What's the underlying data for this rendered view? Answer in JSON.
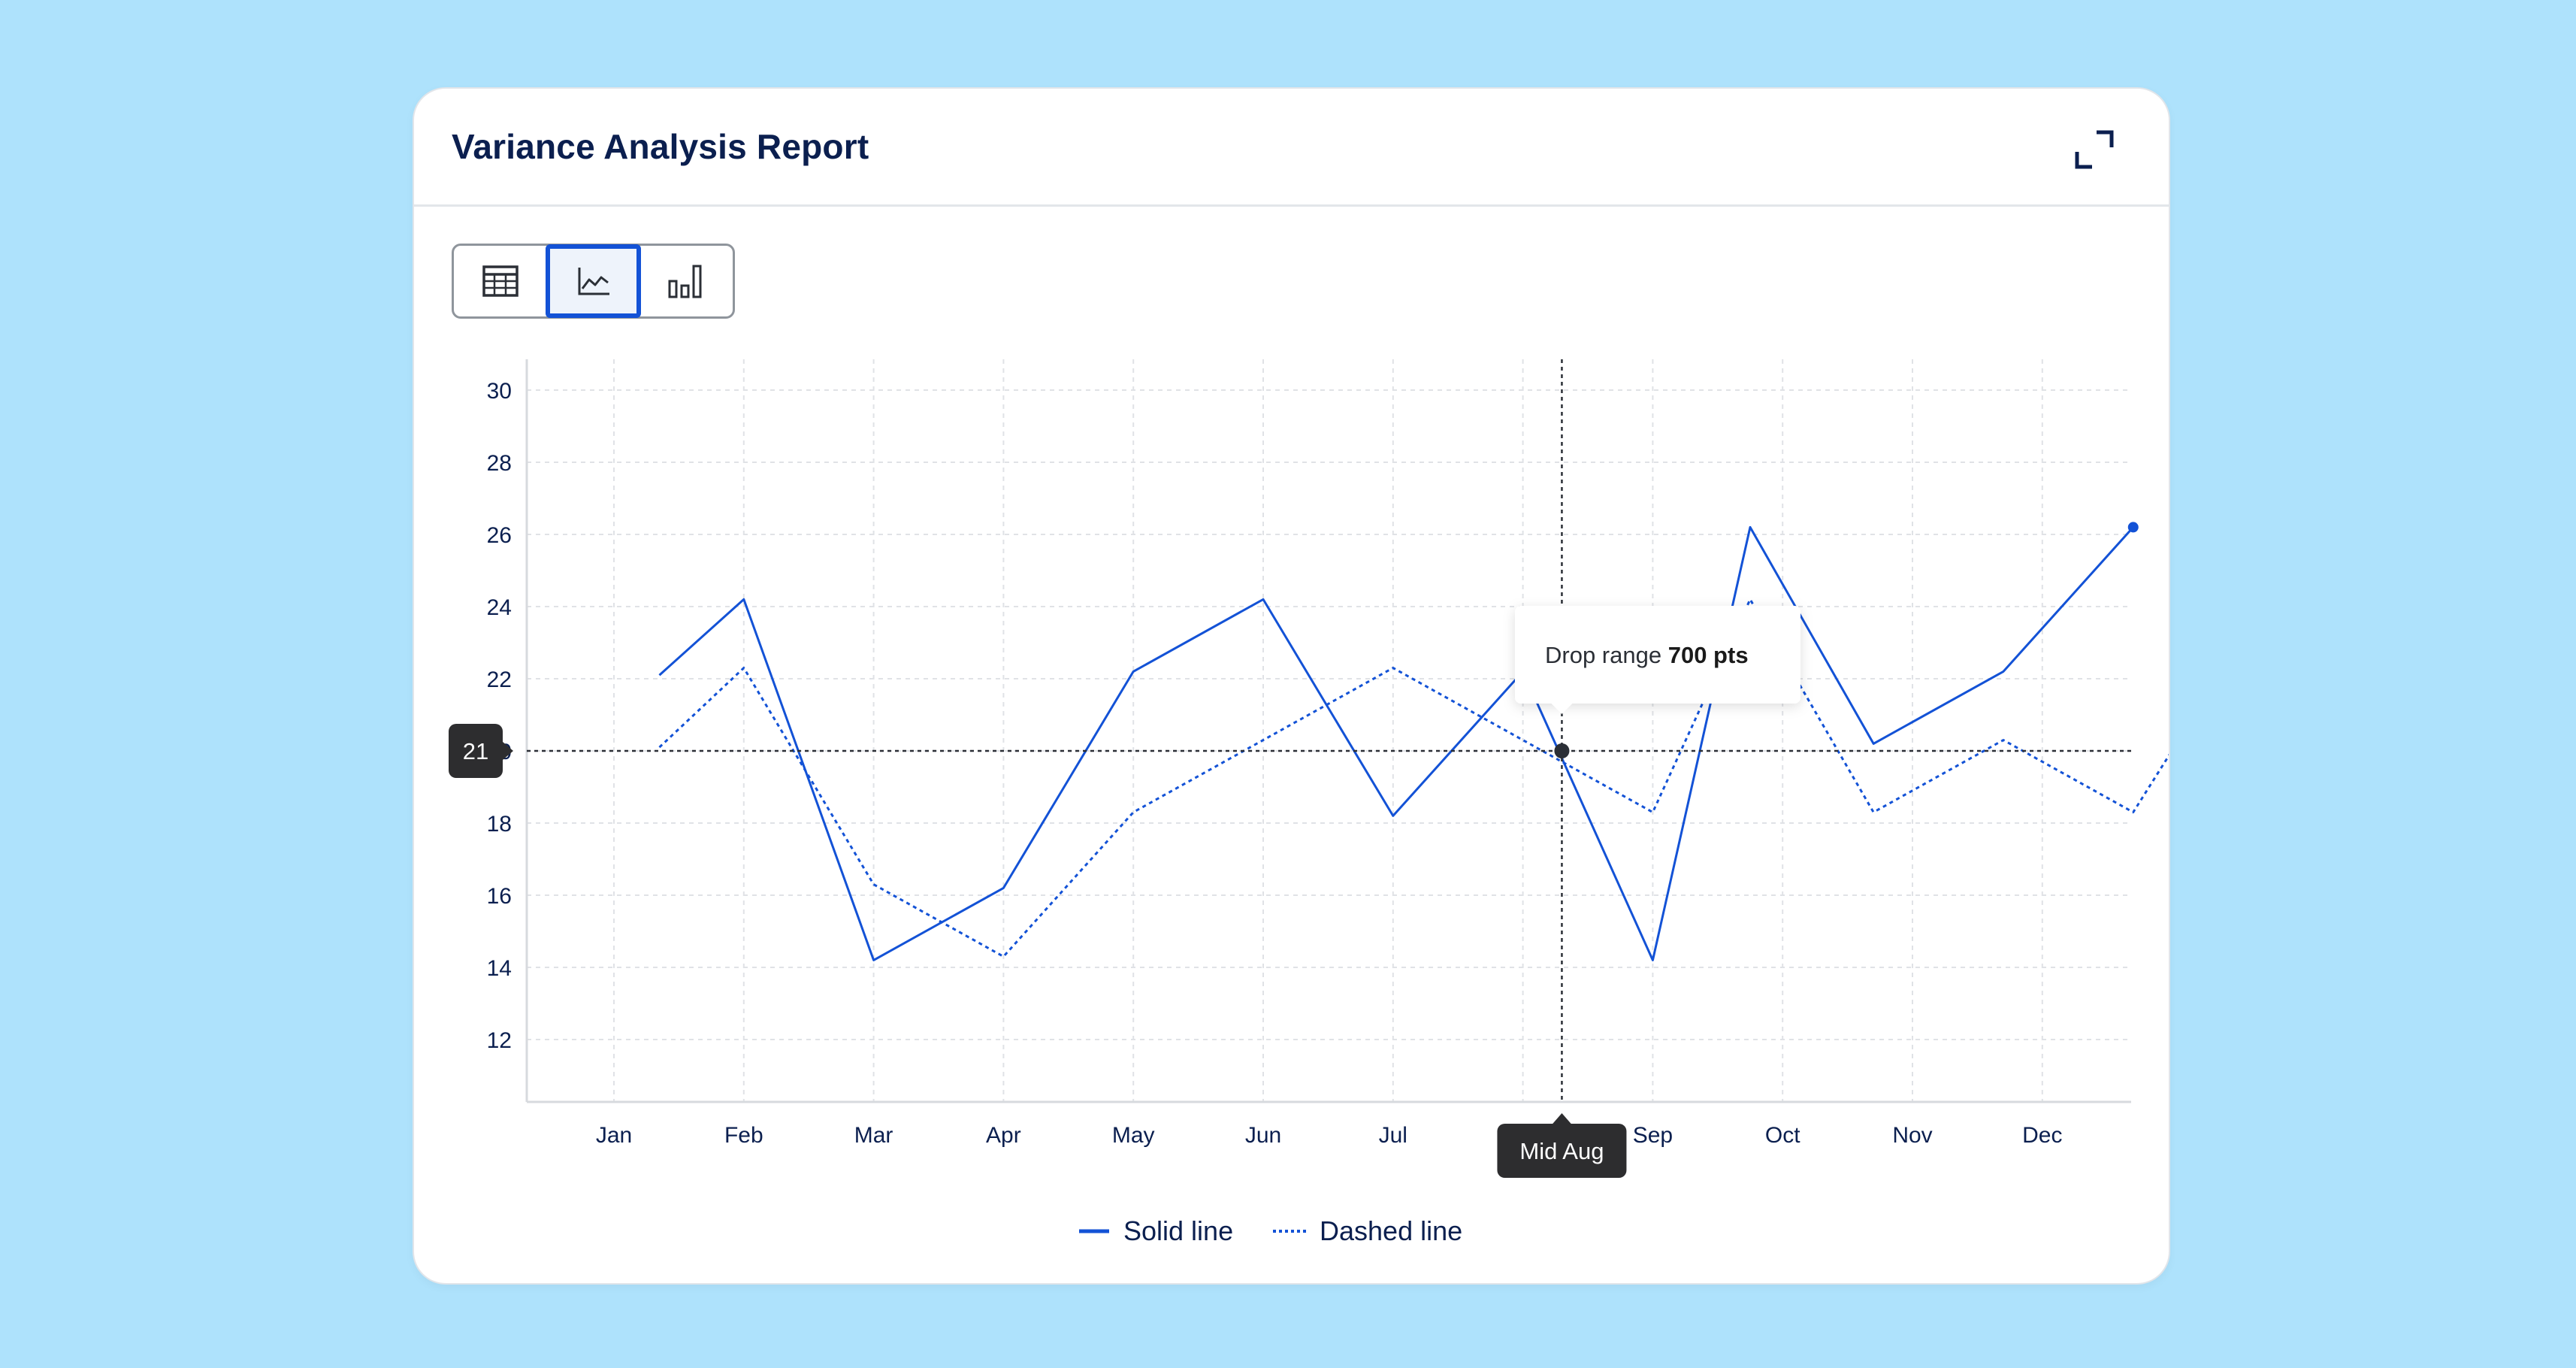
{
  "card": {
    "title": "Variance Analysis Report",
    "expand_icon": "expand-icon"
  },
  "toolbar": {
    "buttons": [
      {
        "icon": "table-icon",
        "active": false
      },
      {
        "icon": "line-chart-icon",
        "active": true
      },
      {
        "icon": "bar-chart-icon",
        "active": false
      }
    ]
  },
  "colors": {
    "accent": "#1352d6",
    "tooltip_dark": "#2d2d2f",
    "title": "#0b1f4f",
    "background": "#aee2fc"
  },
  "chart_data": {
    "type": "line",
    "title": "",
    "xlabel": "",
    "ylabel": "",
    "ylim": [
      10,
      31
    ],
    "yticks": [
      12,
      14,
      16,
      18,
      20,
      22,
      24,
      26,
      28,
      30
    ],
    "categories": [
      "Jan",
      "Feb",
      "Mar",
      "Apr",
      "May",
      "Jun",
      "Jul",
      "Mid Aug",
      "Sep",
      "Oct",
      "Nov",
      "Dec"
    ],
    "grid": true,
    "legend_position": "bottom-center",
    "series": [
      {
        "name": "Solid line",
        "style": "solid",
        "points": [
          {
            "x": 0.35,
            "y": 22.1
          },
          {
            "x": 1,
            "y": 24.2
          },
          {
            "x": 2,
            "y": 14.2
          },
          {
            "x": 3,
            "y": 16.2
          },
          {
            "x": 4,
            "y": 22.2
          },
          {
            "x": 5,
            "y": 24.2
          },
          {
            "x": 6,
            "y": 18.2
          },
          {
            "x": 7,
            "y": 22.2
          },
          {
            "x": 8,
            "y": 14.2
          },
          {
            "x": 8.75,
            "y": 26.2
          },
          {
            "x": 9.7,
            "y": 20.2
          },
          {
            "x": 10.7,
            "y": 22.2
          },
          {
            "x": 11.7,
            "y": 26.2
          }
        ],
        "end_marker": true
      },
      {
        "name": "Dashed line",
        "style": "dotted",
        "points": [
          {
            "x": 0.35,
            "y": 20.1
          },
          {
            "x": 1,
            "y": 22.3
          },
          {
            "x": 2,
            "y": 16.3
          },
          {
            "x": 3,
            "y": 14.3
          },
          {
            "x": 4,
            "y": 18.3
          },
          {
            "x": 5,
            "y": 20.3
          },
          {
            "x": 6,
            "y": 22.3
          },
          {
            "x": 7,
            "y": 20.3
          },
          {
            "x": 8,
            "y": 18.3
          },
          {
            "x": 8.75,
            "y": 24.2
          },
          {
            "x": 9.7,
            "y": 18.3
          },
          {
            "x": 10.7,
            "y": 20.3
          },
          {
            "x": 11.7,
            "y": 18.3
          },
          {
            "x": 12.4,
            "y": 22.3
          }
        ]
      }
    ],
    "crosshair": {
      "x_index": 7.3,
      "y": 20.0,
      "x_label": "Mid Aug",
      "y_label": "21"
    },
    "tooltip": {
      "prefix": "Drop range",
      "value": "700 pts"
    }
  }
}
